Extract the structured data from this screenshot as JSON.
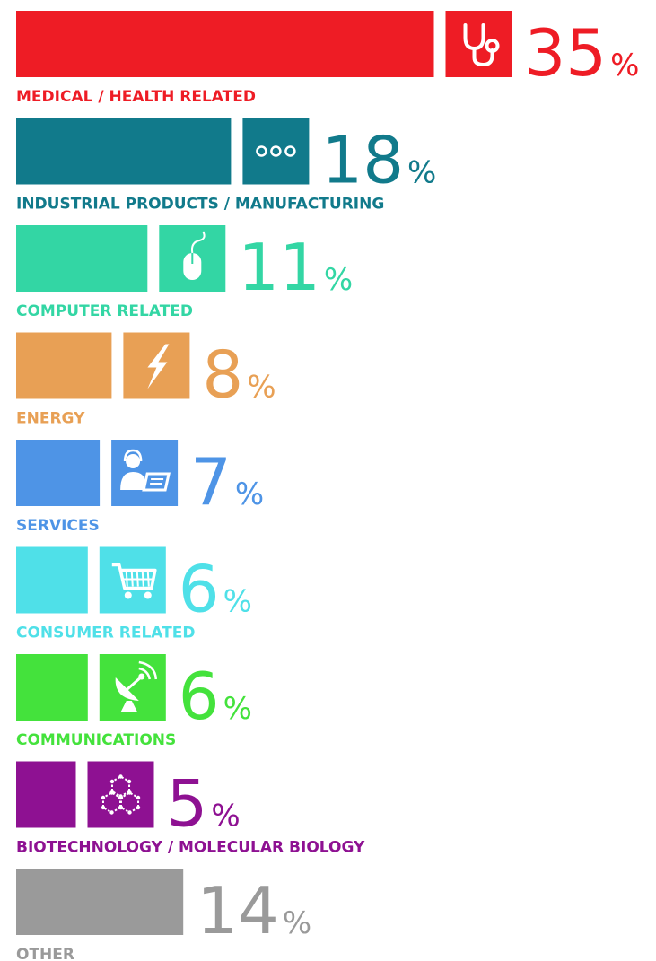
{
  "chart_data": {
    "type": "bar",
    "orientation": "horizontal",
    "unit": "%",
    "categories": [
      "MEDICAL / HEALTH RELATED",
      "INDUSTRIAL PRODUCTS / MANUFACTURING",
      "COMPUTER RELATED",
      "ENERGY",
      "SERVICES",
      "CONSUMER RELATED",
      "COMMUNICATIONS",
      "BIOTECHNOLOGY / MOLECULAR BIOLOGY",
      "OTHER"
    ],
    "values": [
      35,
      18,
      11,
      8,
      7,
      6,
      6,
      5,
      14
    ],
    "value_labels": [
      "35",
      "18",
      "11",
      "8",
      "7",
      "6",
      "6",
      "5",
      "14"
    ],
    "percent_sign": "%",
    "colors": [
      "#ee1c25",
      "#117a8b",
      "#33d6a4",
      "#e8a055",
      "#4e94e6",
      "#4fe0e8",
      "#44e23c",
      "#8e1192",
      "#9a9a9a"
    ],
    "icons": [
      "stethoscope-icon",
      "gears-icon",
      "mouse-icon",
      "lightning-icon",
      "service-agent-icon",
      "shopping-cart-icon",
      "satellite-dish-icon",
      "molecule-icon",
      null
    ],
    "legend": "none",
    "grid": false
  }
}
